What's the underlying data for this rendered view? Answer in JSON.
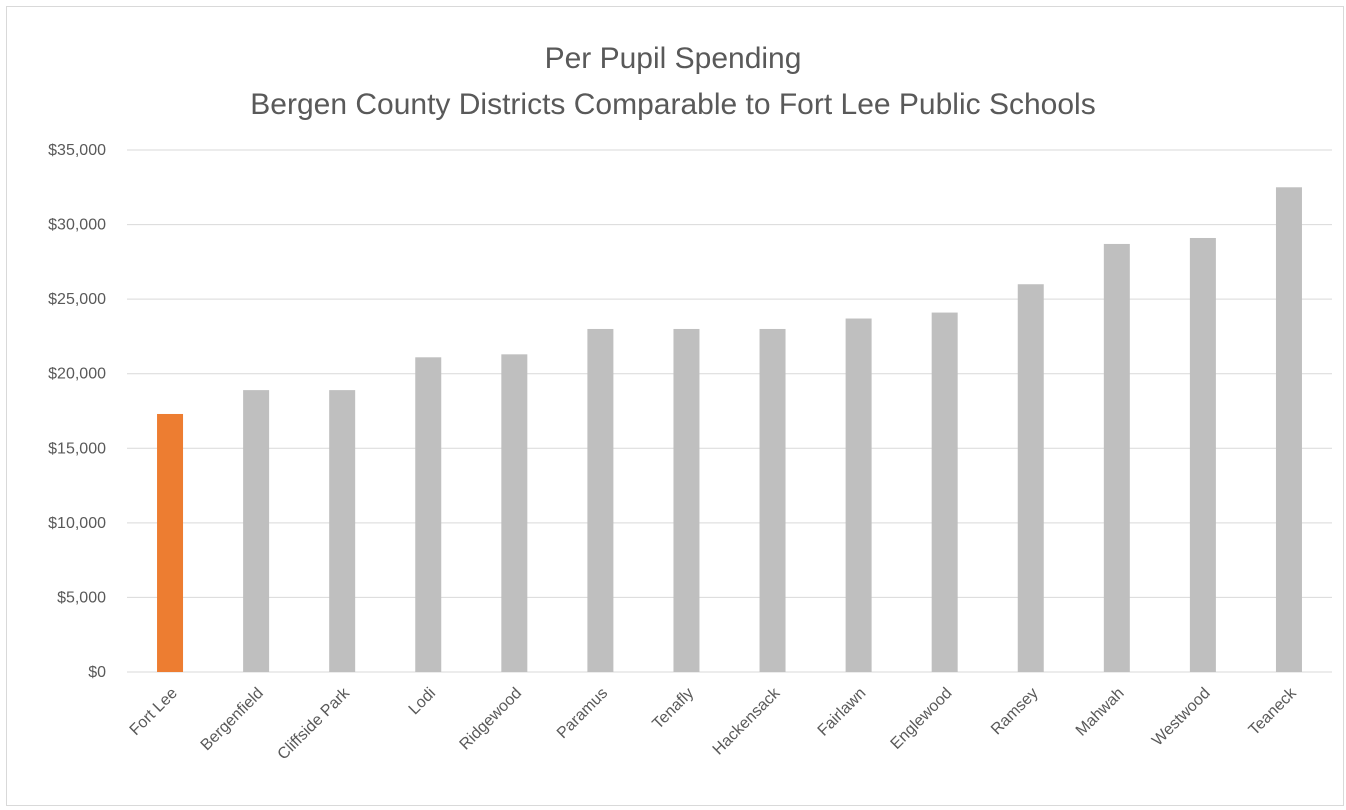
{
  "chart_data": {
    "type": "bar",
    "title": [
      "Per Pupil Spending",
      "Bergen County Districts Comparable to Fort Lee Public Schools"
    ],
    "xlabel": "",
    "ylabel": "",
    "categories": [
      "Fort Lee",
      "Bergenfield",
      "Cliffside Park",
      "Lodi",
      "Ridgewood",
      "Paramus",
      "Tenafly",
      "Hackensack",
      "Fairlawn",
      "Englewood",
      "Ramsey",
      "Mahwah",
      "Westwood",
      "Teaneck"
    ],
    "values": [
      17300,
      18900,
      18900,
      21100,
      21300,
      23000,
      23000,
      23000,
      23700,
      24100,
      26000,
      28700,
      29100,
      32500
    ],
    "ylim": [
      0,
      35000
    ],
    "yticks": [
      0,
      5000,
      10000,
      15000,
      20000,
      25000,
      30000,
      35000
    ],
    "ytick_labels": [
      "$0",
      "$5,000",
      "$10,000",
      "$15,000",
      "$20,000",
      "$25,000",
      "$30,000",
      "$35,000"
    ],
    "grid": true,
    "legend": "none",
    "colors": {
      "highlight": "#ed7d31",
      "default": "#bfbfbf",
      "grid": "#d9d9d9",
      "text": "#595959"
    },
    "highlight_index": 0
  }
}
